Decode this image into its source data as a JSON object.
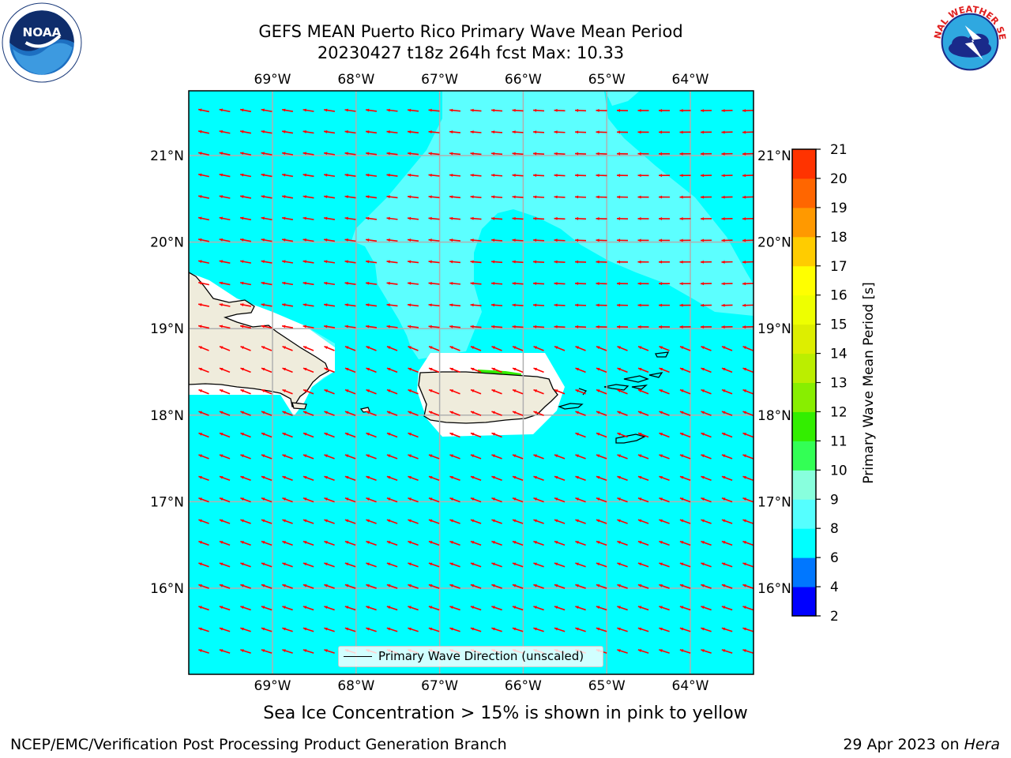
{
  "title_line1": "GEFS MEAN Puerto Rico Primary Wave Mean Period",
  "title_line2": "20230427 t18z 264h fcst   Max: 10.33",
  "lon_labels": [
    "69°W",
    "68°W",
    "67°W",
    "66°W",
    "65°W",
    "64°W"
  ],
  "lat_labels": [
    "21°N",
    "20°N",
    "19°N",
    "18°N",
    "17°N",
    "16°N"
  ],
  "lon_values": [
    -69,
    -68,
    -67,
    -66,
    -65,
    -64
  ],
  "lat_values": [
    21,
    20,
    19,
    18,
    17,
    16
  ],
  "colorbar": {
    "label": "Primary Wave Mean Period [s]",
    "ticks": [
      "2",
      "4",
      "6",
      "8",
      "9",
      "10",
      "11",
      "12",
      "13",
      "14",
      "15",
      "16",
      "17",
      "18",
      "19",
      "20",
      "21"
    ],
    "colors": [
      "#0000ff",
      "#0077ff",
      "#00ffff",
      "#55ffff",
      "#88ffdd",
      "#33ff55",
      "#33ee00",
      "#88ee00",
      "#bbee00",
      "#ddee00",
      "#eeff00",
      "#ffff00",
      "#ffcc00",
      "#ff9900",
      "#ff6600",
      "#ff3300",
      "#ff0000"
    ]
  },
  "legend_label": "Primary Wave Direction (unscaled)",
  "sea_ice_note": "Sea Ice Concentration > 15% is shown in pink to yellow",
  "credit": "NCEP/EMC/Verification Post Processing Product Generation Branch",
  "date_text": "29 Apr 2023 on ",
  "date_machine": "Hera",
  "colors": {
    "ocean": "#00ffff",
    "ocean_light": "#55ffff",
    "land": "#efecdc",
    "arrow": "#ff0000",
    "grid": "#b0b0b0"
  },
  "logos": {
    "left": "NOAA",
    "right": "NATIONAL WEATHER SERVICE"
  }
}
